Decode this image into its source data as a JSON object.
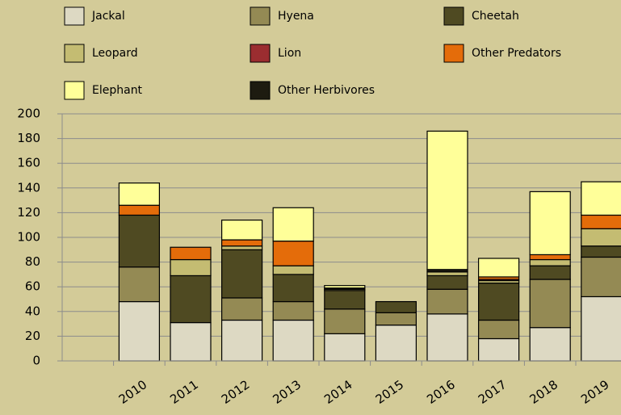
{
  "chart_data": {
    "type": "stacked_bar",
    "categories": [
      null,
      "2010",
      "2011",
      "2012",
      "2013",
      "2014",
      "2015",
      "2016",
      "2017",
      "2018",
      "2019"
    ],
    "series": [
      {
        "name": "Jackal",
        "color": "#ddd9c3",
        "values": [
          null,
          48,
          31,
          33,
          33,
          22,
          29,
          38,
          18,
          27,
          52
        ]
      },
      {
        "name": "Hyena",
        "color": "#948a54",
        "values": [
          null,
          28,
          0,
          18,
          15,
          20,
          10,
          20,
          15,
          39,
          32
        ]
      },
      {
        "name": "Cheetah",
        "color": "#4f4a22",
        "values": [
          null,
          42,
          38,
          39,
          22,
          15,
          9,
          11,
          30,
          11,
          9
        ]
      },
      {
        "name": "Leopard",
        "color": "#c4bc72",
        "values": [
          null,
          0,
          13,
          3,
          7,
          1,
          0,
          3,
          2,
          5,
          14
        ]
      },
      {
        "name": "Lion",
        "color": "#9b2d30",
        "values": [
          null,
          0,
          0,
          0,
          0,
          0,
          0,
          0,
          1,
          0,
          0
        ]
      },
      {
        "name": "Other Predators",
        "color": "#e46c0a",
        "values": [
          null,
          8,
          10,
          5,
          20,
          0,
          0,
          0,
          2,
          4,
          11
        ]
      },
      {
        "name": "Other Herbivores",
        "color": "#1d1b10",
        "values": [
          null,
          0,
          0,
          0,
          0,
          1,
          0,
          2,
          0,
          0,
          0
        ]
      },
      {
        "name": "Elephant",
        "color": "#ffff99",
        "values": [
          null,
          18,
          0,
          16,
          27,
          2,
          0,
          112,
          15,
          51,
          27
        ]
      }
    ],
    "ylim": [
      0,
      200
    ],
    "yticks": [
      0,
      20,
      40,
      60,
      80,
      100,
      120,
      140,
      160,
      180,
      200
    ],
    "grid": true
  }
}
